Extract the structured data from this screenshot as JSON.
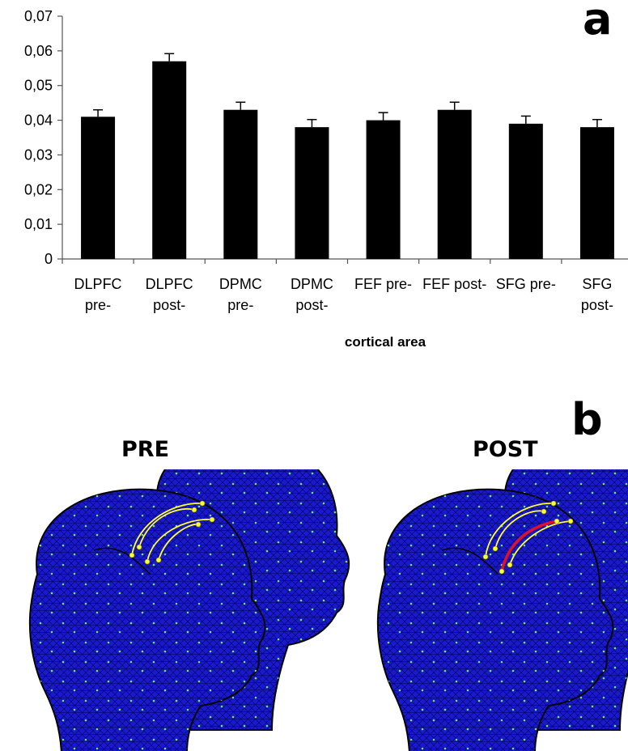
{
  "panel_a_letter": "a",
  "panel_b_letter": "b",
  "chart_data": {
    "type": "bar",
    "categories": [
      [
        "DLPFC",
        "pre-"
      ],
      [
        "DLPFC",
        "post-"
      ],
      [
        "DPMC",
        "pre-"
      ],
      [
        "DPMC",
        "post-"
      ],
      [
        "FEF pre-"
      ],
      [
        "FEF post-"
      ],
      [
        "SFG pre-"
      ],
      [
        "SFG",
        "post-"
      ]
    ],
    "values": [
      0.041,
      0.057,
      0.043,
      0.038,
      0.04,
      0.043,
      0.039,
      0.038
    ],
    "errors": [
      0.002,
      0.0022,
      0.0022,
      0.0022,
      0.0022,
      0.0022,
      0.0022,
      0.0022
    ],
    "xlabel": "cortical area",
    "ylabel": "",
    "ylim": [
      0,
      0.07
    ],
    "yticks": [
      "0",
      "0,01",
      "0,02",
      "0,03",
      "0,04",
      "0,05",
      "0,06",
      "0,07"
    ],
    "grid": false,
    "bar_color": "#000000"
  },
  "heads": {
    "pre_label": "PRE",
    "post_label": "POST",
    "mesh_color": "#1a1acc",
    "connection_color": "#ffff33",
    "highlight_color": "#e0102a"
  }
}
